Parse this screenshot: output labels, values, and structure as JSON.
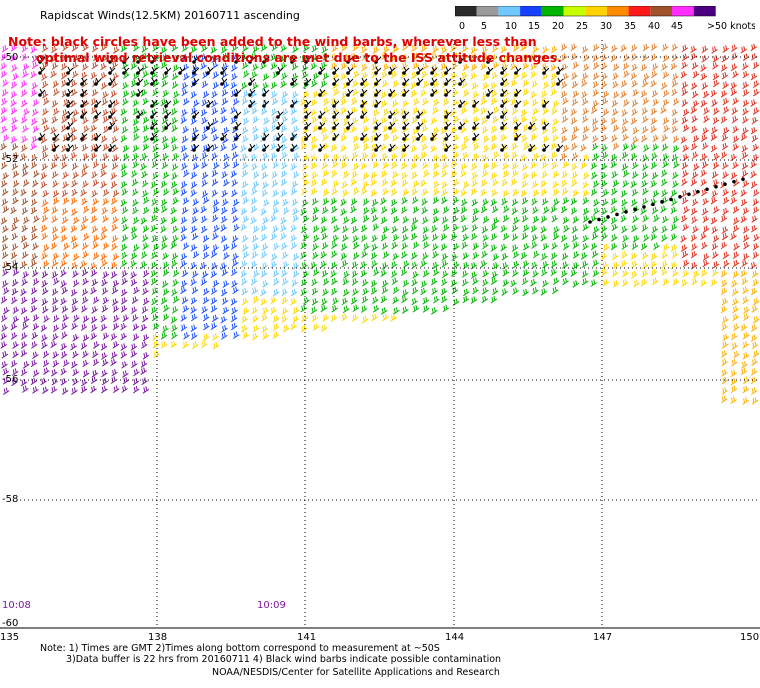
{
  "title": "Rapidscat Winds(12.5KM) 20160711 ascending",
  "note_line1": "Note: black circles have been added to the wind barbs, wherever less than",
  "note_line2": "optimal wind retrieval conditions are met due to the ISS attitude changes.",
  "legend": {
    "labels": [
      "0",
      "5",
      "10",
      "15",
      "20",
      "25",
      "30",
      "35",
      "40",
      "45",
      ">50 knots"
    ],
    "colors": [
      "#2a2a2a",
      "#9a9a9a",
      "#6fc8ff",
      "#1840ff",
      "#00b400",
      "#c8ff00",
      "#ffd200",
      "#ff8c00",
      "#ff1a1a",
      "#a0522d",
      "#ff2dff",
      "#4b0082"
    ]
  },
  "lat_labels": [
    "-50",
    "-52",
    "-54",
    "-56",
    "-58",
    "-60"
  ],
  "lon_labels": [
    "135",
    "138",
    "141",
    "144",
    "147",
    "150"
  ],
  "time_labels": [
    "10:08",
    "10:09"
  ],
  "footer_line1": "Note: 1) Times are GMT 2)Times along bottom correspond to measurement at ~50S",
  "footer_line2": "3)Data buffer is 22 hrs from 20160711 4) Black wind barbs indicate possible contamination",
  "footer_line3": "NOAA/NESDIS/Center for Satellite Applications and Research"
}
